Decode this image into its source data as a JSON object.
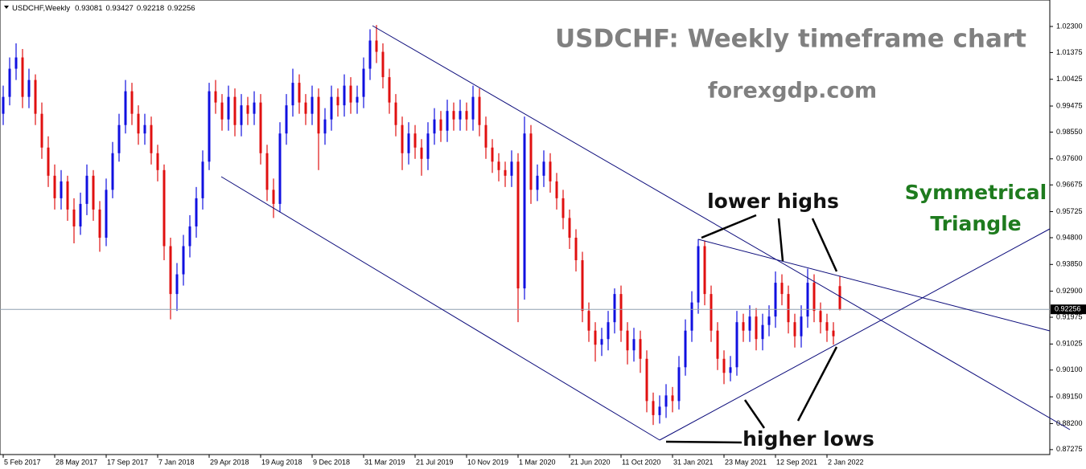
{
  "chart_data": {
    "type": "candlestick",
    "symbol": "USDCHF,Weekly",
    "title": "USDCHF: Weekly timeframe chart",
    "subtitle": "forexgdp.com",
    "annotations": [
      "lower highs",
      "Symmetrical",
      "Triangle",
      "higher lows"
    ],
    "up_color": "#1010e0",
    "down_color": "#e01010",
    "price_line_color": "#8fa0b0",
    "categories": [
      "5 Feb 2017",
      null,
      null,
      null,
      null,
      null,
      null,
      null,
      "28 May 2017",
      null,
      null,
      null,
      null,
      null,
      null,
      null,
      "17 Sep 2017",
      null,
      null,
      null,
      null,
      null,
      null,
      null,
      "7 Jan 2018",
      null,
      null,
      null,
      null,
      null,
      null,
      null,
      "29 Apr 2018",
      null,
      null,
      null,
      null,
      null,
      null,
      null,
      "19 Aug 2018",
      null,
      null,
      null,
      null,
      null,
      null,
      null,
      "9 Dec 2018",
      null,
      null,
      null,
      null,
      null,
      null,
      null,
      "31 Mar 2019",
      null,
      null,
      null,
      null,
      null,
      null,
      null,
      "21 Jul 2019",
      null,
      null,
      null,
      null,
      null,
      null,
      null,
      "10 Nov 2019",
      null,
      null,
      null,
      null,
      null,
      null,
      null,
      "1 Mar 2020",
      null,
      null,
      null,
      null,
      null,
      null,
      null,
      "21 Jun 2020",
      null,
      null,
      null,
      null,
      null,
      null,
      null,
      "11 Oct 2020",
      null,
      null,
      null,
      null,
      null,
      null,
      null,
      "31 Jan 2021",
      null,
      null,
      null,
      null,
      null,
      null,
      null,
      "23 May 2021",
      null,
      null,
      null,
      null,
      null,
      null,
      null,
      "12 Sep 2021",
      null,
      null,
      null,
      null,
      null,
      null,
      null,
      "2 Jan 2022",
      null,
      null
    ],
    "ohlc": [
      [
        0.992,
        1.002,
        0.988,
        0.998
      ],
      [
        0.998,
        1.012,
        0.995,
        1.008
      ],
      [
        1.008,
        1.017,
        1.004,
        1.012
      ],
      [
        1.012,
        1.015,
        0.994,
        0.998
      ],
      [
        0.998,
        1.008,
        0.994,
        1.004
      ],
      [
        1.004,
        1.006,
        0.988,
        0.992
      ],
      [
        0.992,
        0.996,
        0.976,
        0.98
      ],
      [
        0.98,
        0.984,
        0.966,
        0.97
      ],
      [
        0.97,
        0.974,
        0.958,
        0.962
      ],
      [
        0.962,
        0.972,
        0.958,
        0.968
      ],
      [
        0.968,
        0.97,
        0.954,
        0.958
      ],
      [
        0.958,
        0.962,
        0.946,
        0.952
      ],
      [
        0.952,
        0.964,
        0.949,
        0.96
      ],
      [
        0.96,
        0.974,
        0.956,
        0.97
      ],
      [
        0.97,
        0.972,
        0.954,
        0.958
      ],
      [
        0.958,
        0.961,
        0.943,
        0.948
      ],
      [
        0.948,
        0.969,
        0.945,
        0.965
      ],
      [
        0.965,
        0.982,
        0.962,
        0.978
      ],
      [
        0.978,
        0.992,
        0.975,
        0.988
      ],
      [
        0.988,
        1.004,
        0.985,
        1.0
      ],
      [
        1.0,
        1.003,
        0.988,
        0.992
      ],
      [
        0.992,
        0.995,
        0.981,
        0.985
      ],
      [
        0.985,
        0.992,
        0.981,
        0.988
      ],
      [
        0.988,
        0.991,
        0.974,
        0.978
      ],
      [
        0.978,
        0.981,
        0.968,
        0.972
      ],
      [
        0.972,
        0.974,
        0.94,
        0.945
      ],
      [
        0.945,
        0.948,
        0.919,
        0.928
      ],
      [
        0.928,
        0.939,
        0.922,
        0.935
      ],
      [
        0.935,
        0.949,
        0.931,
        0.945
      ],
      [
        0.945,
        0.956,
        0.941,
        0.952
      ],
      [
        0.952,
        0.966,
        0.948,
        0.962
      ],
      [
        0.962,
        0.979,
        0.958,
        0.975
      ],
      [
        0.975,
        1.003,
        0.972,
        1.0
      ],
      [
        1.0,
        1.004,
        0.992,
        0.996
      ],
      [
        0.996,
        0.999,
        0.986,
        0.99
      ],
      [
        0.99,
        1.002,
        0.986,
        0.998
      ],
      [
        0.998,
        1.001,
        0.984,
        0.988
      ],
      [
        0.988,
        0.999,
        0.984,
        0.995
      ],
      [
        0.995,
        0.998,
        0.988,
        0.992
      ],
      [
        0.992,
        1.0,
        0.988,
        0.996
      ],
      [
        0.996,
        0.999,
        0.974,
        0.978
      ],
      [
        0.978,
        0.981,
        0.961,
        0.965
      ],
      [
        0.965,
        0.969,
        0.955,
        0.96
      ],
      [
        0.96,
        0.989,
        0.957,
        0.985
      ],
      [
        0.985,
        0.999,
        0.981,
        0.995
      ],
      [
        0.995,
        1.008,
        0.991,
        1.003
      ],
      [
        1.003,
        1.006,
        0.992,
        0.996
      ],
      [
        0.996,
        0.999,
        0.988,
        0.992
      ],
      [
        0.992,
        1.002,
        0.988,
        0.998
      ],
      [
        0.998,
        1.001,
        0.972,
        0.985
      ],
      [
        0.985,
        0.994,
        0.981,
        0.99
      ],
      [
        0.99,
        1.002,
        0.986,
        0.998
      ],
      [
        0.998,
        1.001,
        0.991,
        0.995
      ],
      [
        0.995,
        1.006,
        0.991,
        1.002
      ],
      [
        1.002,
        1.005,
        0.992,
        0.996
      ],
      [
        0.996,
        1.002,
        0.992,
        0.998
      ],
      [
        0.998,
        1.012,
        0.994,
        1.008
      ],
      [
        1.008,
        1.022,
        1.004,
        1.018
      ],
      [
        1.018,
        1.0235,
        1.01,
        1.014
      ],
      [
        1.014,
        1.017,
        1.001,
        1.005
      ],
      [
        1.005,
        1.008,
        0.992,
        0.996
      ],
      [
        0.996,
        0.999,
        0.984,
        0.988
      ],
      [
        0.988,
        0.991,
        0.972,
        0.978
      ],
      [
        0.978,
        0.989,
        0.974,
        0.985
      ],
      [
        0.985,
        0.988,
        0.976,
        0.98
      ],
      [
        0.98,
        0.983,
        0.97,
        0.976
      ],
      [
        0.976,
        0.989,
        0.972,
        0.985
      ],
      [
        0.985,
        0.994,
        0.981,
        0.99
      ],
      [
        0.99,
        0.993,
        0.982,
        0.986
      ],
      [
        0.986,
        0.997,
        0.982,
        0.993
      ],
      [
        0.993,
        0.996,
        0.986,
        0.99
      ],
      [
        0.99,
        0.997,
        0.986,
        0.993
      ],
      [
        0.993,
        0.996,
        0.986,
        0.99
      ],
      [
        0.99,
        1.002,
        0.986,
        0.998
      ],
      [
        0.998,
        1.001,
        0.984,
        0.988
      ],
      [
        0.988,
        0.991,
        0.976,
        0.98
      ],
      [
        0.98,
        0.983,
        0.971,
        0.975
      ],
      [
        0.975,
        0.978,
        0.968,
        0.972
      ],
      [
        0.972,
        0.975,
        0.966,
        0.97
      ],
      [
        0.97,
        0.979,
        0.966,
        0.975
      ],
      [
        0.975,
        0.978,
        0.918,
        0.93
      ],
      [
        0.93,
        0.991,
        0.926,
        0.985
      ],
      [
        0.985,
        0.988,
        0.96,
        0.965
      ],
      [
        0.965,
        0.974,
        0.961,
        0.97
      ],
      [
        0.97,
        0.979,
        0.966,
        0.975
      ],
      [
        0.975,
        0.978,
        0.964,
        0.968
      ],
      [
        0.968,
        0.971,
        0.958,
        0.962
      ],
      [
        0.962,
        0.965,
        0.951,
        0.955
      ],
      [
        0.955,
        0.958,
        0.944,
        0.948
      ],
      [
        0.948,
        0.951,
        0.936,
        0.94
      ],
      [
        0.94,
        0.943,
        0.918,
        0.922
      ],
      [
        0.922,
        0.925,
        0.911,
        0.915
      ],
      [
        0.915,
        0.918,
        0.904,
        0.91
      ],
      [
        0.91,
        0.916,
        0.906,
        0.912
      ],
      [
        0.912,
        0.922,
        0.908,
        0.918
      ],
      [
        0.918,
        0.93,
        0.914,
        0.928
      ],
      [
        0.928,
        0.931,
        0.911,
        0.915
      ],
      [
        0.915,
        0.918,
        0.903,
        0.908
      ],
      [
        0.908,
        0.916,
        0.904,
        0.912
      ],
      [
        0.912,
        0.915,
        0.9,
        0.905
      ],
      [
        0.905,
        0.908,
        0.886,
        0.89
      ],
      [
        0.89,
        0.893,
        0.8815,
        0.885
      ],
      [
        0.885,
        0.892,
        0.882,
        0.888
      ],
      [
        0.888,
        0.896,
        0.884,
        0.892
      ],
      [
        0.892,
        0.895,
        0.886,
        0.89
      ],
      [
        0.89,
        0.906,
        0.887,
        0.902
      ],
      [
        0.902,
        0.919,
        0.899,
        0.915
      ],
      [
        0.915,
        0.929,
        0.911,
        0.925
      ],
      [
        0.925,
        0.9475,
        0.921,
        0.945
      ],
      [
        0.945,
        0.947,
        0.924,
        0.928
      ],
      [
        0.928,
        0.931,
        0.911,
        0.915
      ],
      [
        0.915,
        0.918,
        0.901,
        0.905
      ],
      [
        0.905,
        0.908,
        0.896,
        0.9
      ],
      [
        0.9,
        0.906,
        0.897,
        0.902
      ],
      [
        0.902,
        0.922,
        0.899,
        0.918
      ],
      [
        0.918,
        0.921,
        0.911,
        0.915
      ],
      [
        0.915,
        0.924,
        0.911,
        0.92
      ],
      [
        0.92,
        0.923,
        0.908,
        0.912
      ],
      [
        0.912,
        0.921,
        0.908,
        0.917
      ],
      [
        0.917,
        0.924,
        0.913,
        0.92
      ],
      [
        0.92,
        0.936,
        0.916,
        0.932
      ],
      [
        0.932,
        0.935,
        0.924,
        0.928
      ],
      [
        0.928,
        0.931,
        0.914,
        0.918
      ],
      [
        0.918,
        0.921,
        0.909,
        0.913
      ],
      [
        0.913,
        0.924,
        0.909,
        0.92
      ],
      [
        0.92,
        0.937,
        0.916,
        0.932
      ],
      [
        0.932,
        0.935,
        0.918,
        0.922
      ],
      [
        0.922,
        0.925,
        0.914,
        0.918
      ],
      [
        0.918,
        0.921,
        0.911,
        0.915
      ],
      [
        0.915,
        0.918,
        0.91,
        0.913
      ],
      [
        0.93081,
        0.93427,
        0.92218,
        0.92256
      ]
    ],
    "ylim": [
      0.871,
      1.0324
    ],
    "yticks": [
      {
        "value": 1.023,
        "label": "1.02300"
      },
      {
        "value": 1.01375,
        "label": "1.01375"
      },
      {
        "value": 1.00425,
        "label": "1.00425"
      },
      {
        "value": 0.99475,
        "label": "0.99475"
      },
      {
        "value": 0.9855,
        "label": "0.98550"
      },
      {
        "value": 0.976,
        "label": "0.97600"
      },
      {
        "value": 0.96675,
        "label": "0.96675"
      },
      {
        "value": 0.95725,
        "label": "0.95725"
      },
      {
        "value": 0.948,
        "label": "0.94800"
      },
      {
        "value": 0.9385,
        "label": "0.93850"
      },
      {
        "value": 0.929,
        "label": "0.92900"
      },
      {
        "value": 0.91975,
        "label": "0.91975"
      },
      {
        "value": 0.91025,
        "label": "0.91025"
      },
      {
        "value": 0.901,
        "label": "0.90100"
      },
      {
        "value": 0.8915,
        "label": "0.89150"
      },
      {
        "value": 0.882,
        "label": "0.88200"
      },
      {
        "value": 0.87275,
        "label": "0.87275"
      }
    ]
  }
}
